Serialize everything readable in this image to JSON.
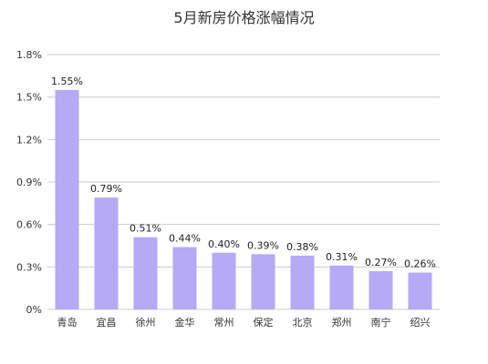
{
  "chart_data": {
    "type": "bar",
    "title": "5月新房价格涨幅情况",
    "categories": [
      "青岛",
      "宜昌",
      "徐州",
      "金华",
      "常州",
      "保定",
      "北京",
      "郑州",
      "南宁",
      "绍兴"
    ],
    "values": [
      1.55,
      0.79,
      0.51,
      0.44,
      0.4,
      0.39,
      0.38,
      0.31,
      0.27,
      0.26
    ],
    "data_labels": [
      "1.55%",
      "0.79%",
      "0.51%",
      "0.44%",
      "0.40%",
      "0.39%",
      "0.38%",
      "0.31%",
      "0.27%",
      "0.26%"
    ],
    "ylim": [
      0,
      1.8
    ],
    "yticks": [
      0,
      0.3,
      0.6,
      0.9,
      1.2,
      1.5,
      1.8
    ],
    "ytick_labels": [
      "0%",
      "0.3%",
      "0.6%",
      "0.9%",
      "1.2%",
      "1.5%",
      "1.8%"
    ],
    "grid": true,
    "legend": "none",
    "colors": {
      "bar": "#b6a9f5",
      "grid": "#cccccc",
      "text": "#333333"
    }
  }
}
